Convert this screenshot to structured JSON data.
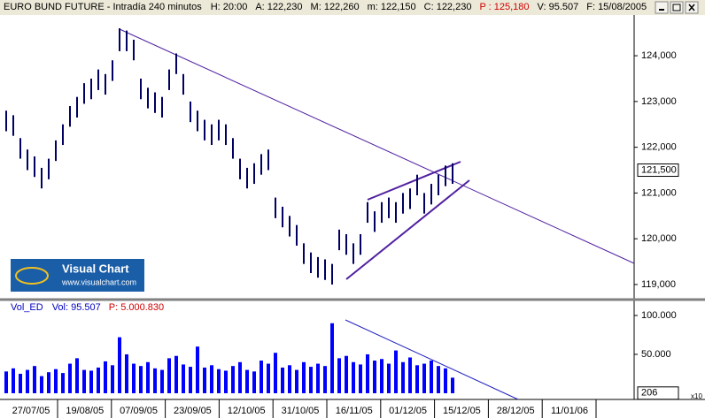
{
  "logo": {
    "name": "Visual Chart",
    "url": "www.visualchart.com"
  },
  "chart_data": [
    {
      "type": "range-bar",
      "title": "EURO BUND FUTURE - Intradía 240 minutos",
      "info": [
        {
          "text": "H: 20:00",
          "color": "#000000"
        },
        {
          "text": "A: 122,230",
          "color": "#000000"
        },
        {
          "text": "M: 122,260",
          "color": "#000000"
        },
        {
          "text": "m: 122,150",
          "color": "#000000"
        },
        {
          "text": "C: 122,230",
          "color": "#000000"
        },
        {
          "text": "P : 125,180",
          "color": "#d00000"
        },
        {
          "text": "V: 95.507",
          "color": "#000000"
        },
        {
          "text": "F: 15/08/2005",
          "color": "#000000"
        }
      ],
      "color": "#000060",
      "high": [
        122.8,
        122.7,
        122.2,
        121.95,
        121.8,
        121.55,
        121.75,
        122.15,
        122.5,
        122.9,
        123.1,
        123.4,
        123.5,
        123.7,
        123.6,
        123.9,
        124.6,
        124.55,
        124.35,
        123.5,
        123.3,
        123.2,
        123.1,
        123.7,
        124.05,
        123.6,
        123.0,
        122.8,
        122.6,
        122.5,
        122.6,
        122.5,
        122.2,
        121.75,
        121.55,
        121.65,
        121.85,
        121.95,
        120.9,
        120.7,
        120.5,
        120.3,
        119.9,
        119.7,
        119.6,
        119.55,
        119.45,
        120.2,
        120.1,
        119.9,
        120.1,
        120.8,
        120.6,
        120.8,
        120.9,
        120.8,
        121.0,
        121.1,
        121.4,
        121.0,
        121.2,
        121.4,
        121.6,
        121.65
      ],
      "low": [
        122.35,
        122.25,
        121.75,
        121.5,
        121.35,
        121.1,
        121.3,
        121.7,
        122.05,
        122.45,
        122.65,
        122.95,
        123.05,
        123.25,
        123.15,
        123.45,
        124.1,
        124.1,
        123.9,
        123.05,
        122.85,
        122.75,
        122.65,
        123.25,
        123.6,
        123.15,
        122.55,
        122.35,
        122.15,
        122.05,
        122.15,
        122.05,
        121.75,
        121.3,
        121.1,
        121.2,
        121.4,
        121.5,
        120.45,
        120.25,
        120.05,
        119.85,
        119.45,
        119.25,
        119.15,
        119.1,
        119.0,
        119.75,
        119.65,
        119.45,
        119.65,
        120.35,
        120.15,
        120.35,
        120.45,
        120.35,
        120.55,
        120.65,
        120.95,
        120.55,
        120.75,
        120.95,
        121.15,
        121.2
      ],
      "ylim": [
        118.69,
        124.89
      ],
      "yticks": [
        {
          "value": 119,
          "label": "119,000"
        },
        {
          "value": 120,
          "label": "120,000"
        },
        {
          "value": 121,
          "label": "121,000"
        },
        {
          "value": 122,
          "label": "122,000"
        },
        {
          "value": 123,
          "label": "123,000"
        },
        {
          "value": 124,
          "label": "124,000"
        }
      ],
      "last": {
        "value": 121.5,
        "label": "121,500"
      }
    },
    {
      "type": "bar",
      "title": "Vol_ED",
      "info": [
        {
          "text": "Vol: 95.507",
          "color": "#0000c0"
        },
        {
          "text": "P: 5.000.830",
          "color": "#d00000"
        }
      ],
      "color": "#0000ff",
      "values": [
        28000,
        32000,
        25000,
        30000,
        35000,
        22000,
        27000,
        31000,
        26000,
        38000,
        45000,
        30000,
        29000,
        33000,
        41000,
        36000,
        72000,
        50000,
        38000,
        35000,
        40000,
        32000,
        30000,
        45000,
        48000,
        37000,
        34000,
        60000,
        33000,
        36000,
        31000,
        29000,
        35000,
        40000,
        30000,
        28000,
        42000,
        38000,
        52000,
        33000,
        36000,
        30000,
        40000,
        34000,
        38000,
        35000,
        90000,
        45000,
        48000,
        40000,
        37000,
        50000,
        42000,
        44000,
        38000,
        55000,
        40000,
        46000,
        36000,
        38000,
        42000,
        35000,
        32000,
        20000
      ],
      "ylim": [
        -5700,
        117000
      ],
      "yticks": [
        {
          "value": 100000,
          "label": "100.000"
        },
        {
          "value": 50000,
          "label": "50.000"
        }
      ],
      "last": {
        "value": 206,
        "label": "206"
      },
      "scale_note": "x10",
      "x_labels": [
        "27/07/05",
        "19/08/05",
        "07/09/05",
        "23/09/05",
        "12/10/05",
        "31/10/05",
        "16/11/05",
        "01/12/05",
        "15/12/05",
        "28/12/05",
        "11/01/06"
      ]
    }
  ]
}
